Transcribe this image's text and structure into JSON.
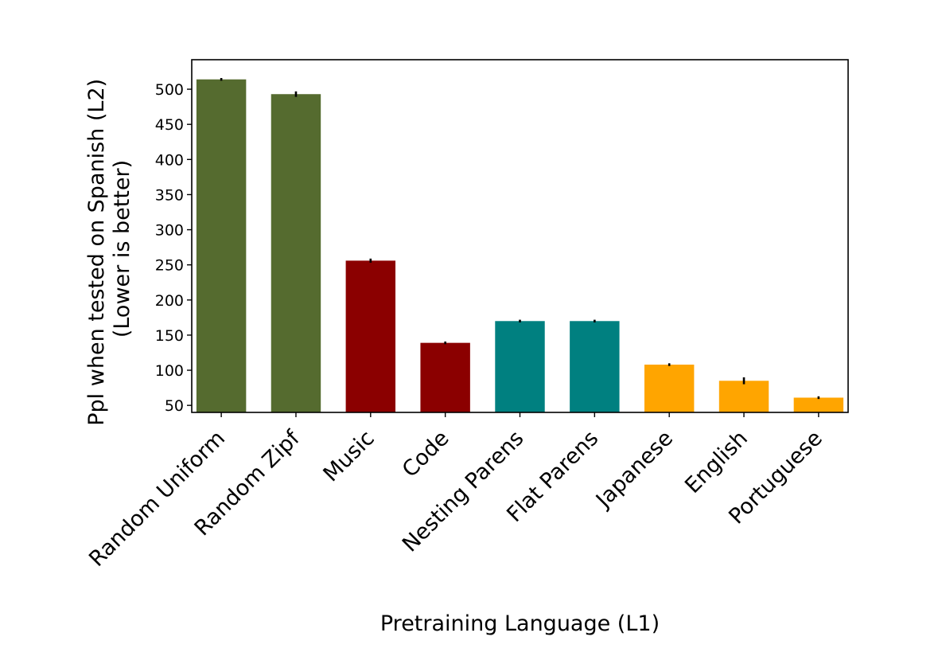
{
  "chart_data": {
    "type": "bar",
    "title": "",
    "xlabel": "Pretraining Language (L1)",
    "ylabel_lines": [
      "Ppl when tested on Spanish (L2)",
      "(Lower is better)"
    ],
    "ylim": [
      40,
      542
    ],
    "yticks": [
      50,
      100,
      150,
      200,
      250,
      300,
      350,
      400,
      450,
      500
    ],
    "grid": false,
    "legend": "none",
    "categories": [
      "Random Uniform",
      "Random Zipf",
      "Music",
      "Code",
      "Nesting Parens",
      "Flat Parens",
      "Japanese",
      "English",
      "Portuguese"
    ],
    "values": [
      514,
      493,
      256,
      139,
      170,
      170,
      108,
      85,
      61
    ],
    "errors": [
      1,
      3,
      2,
      1,
      1,
      1,
      1,
      4,
      1
    ],
    "colors": [
      "#556b2f",
      "#556b2f",
      "#8b0000",
      "#8b0000",
      "#008080",
      "#008080",
      "#ffa500",
      "#ffa500",
      "#ffa500"
    ]
  }
}
